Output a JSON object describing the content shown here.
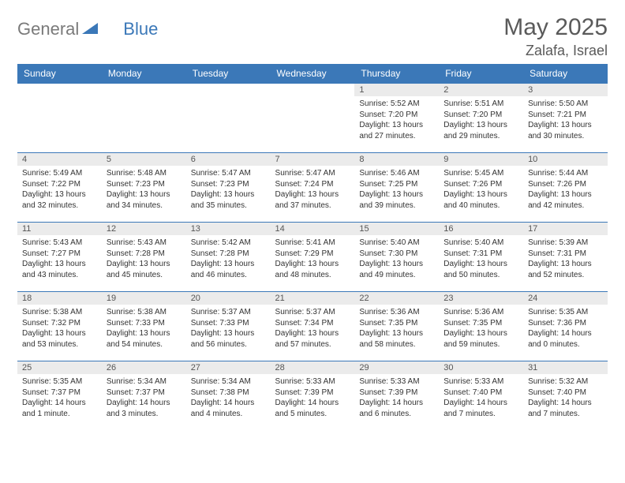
{
  "brand": {
    "text1": "General",
    "text2": "Blue"
  },
  "title": "May 2025",
  "location": "Zalafa, Israel",
  "colors": {
    "header_bg": "#3b78b8",
    "header_text": "#ffffff",
    "daynum_bg": "#ebebeb",
    "row_border": "#3b78b8",
    "page_bg": "#ffffff",
    "body_text": "#333333",
    "muted_text": "#5a5a5a"
  },
  "weekdays": [
    "Sunday",
    "Monday",
    "Tuesday",
    "Wednesday",
    "Thursday",
    "Friday",
    "Saturday"
  ],
  "weeks": [
    [
      {
        "n": "",
        "lines": []
      },
      {
        "n": "",
        "lines": []
      },
      {
        "n": "",
        "lines": []
      },
      {
        "n": "",
        "lines": []
      },
      {
        "n": "1",
        "lines": [
          "Sunrise: 5:52 AM",
          "Sunset: 7:20 PM",
          "Daylight: 13 hours and 27 minutes."
        ]
      },
      {
        "n": "2",
        "lines": [
          "Sunrise: 5:51 AM",
          "Sunset: 7:20 PM",
          "Daylight: 13 hours and 29 minutes."
        ]
      },
      {
        "n": "3",
        "lines": [
          "Sunrise: 5:50 AM",
          "Sunset: 7:21 PM",
          "Daylight: 13 hours and 30 minutes."
        ]
      }
    ],
    [
      {
        "n": "4",
        "lines": [
          "Sunrise: 5:49 AM",
          "Sunset: 7:22 PM",
          "Daylight: 13 hours and 32 minutes."
        ]
      },
      {
        "n": "5",
        "lines": [
          "Sunrise: 5:48 AM",
          "Sunset: 7:23 PM",
          "Daylight: 13 hours and 34 minutes."
        ]
      },
      {
        "n": "6",
        "lines": [
          "Sunrise: 5:47 AM",
          "Sunset: 7:23 PM",
          "Daylight: 13 hours and 35 minutes."
        ]
      },
      {
        "n": "7",
        "lines": [
          "Sunrise: 5:47 AM",
          "Sunset: 7:24 PM",
          "Daylight: 13 hours and 37 minutes."
        ]
      },
      {
        "n": "8",
        "lines": [
          "Sunrise: 5:46 AM",
          "Sunset: 7:25 PM",
          "Daylight: 13 hours and 39 minutes."
        ]
      },
      {
        "n": "9",
        "lines": [
          "Sunrise: 5:45 AM",
          "Sunset: 7:26 PM",
          "Daylight: 13 hours and 40 minutes."
        ]
      },
      {
        "n": "10",
        "lines": [
          "Sunrise: 5:44 AM",
          "Sunset: 7:26 PM",
          "Daylight: 13 hours and 42 minutes."
        ]
      }
    ],
    [
      {
        "n": "11",
        "lines": [
          "Sunrise: 5:43 AM",
          "Sunset: 7:27 PM",
          "Daylight: 13 hours and 43 minutes."
        ]
      },
      {
        "n": "12",
        "lines": [
          "Sunrise: 5:43 AM",
          "Sunset: 7:28 PM",
          "Daylight: 13 hours and 45 minutes."
        ]
      },
      {
        "n": "13",
        "lines": [
          "Sunrise: 5:42 AM",
          "Sunset: 7:28 PM",
          "Daylight: 13 hours and 46 minutes."
        ]
      },
      {
        "n": "14",
        "lines": [
          "Sunrise: 5:41 AM",
          "Sunset: 7:29 PM",
          "Daylight: 13 hours and 48 minutes."
        ]
      },
      {
        "n": "15",
        "lines": [
          "Sunrise: 5:40 AM",
          "Sunset: 7:30 PM",
          "Daylight: 13 hours and 49 minutes."
        ]
      },
      {
        "n": "16",
        "lines": [
          "Sunrise: 5:40 AM",
          "Sunset: 7:31 PM",
          "Daylight: 13 hours and 50 minutes."
        ]
      },
      {
        "n": "17",
        "lines": [
          "Sunrise: 5:39 AM",
          "Sunset: 7:31 PM",
          "Daylight: 13 hours and 52 minutes."
        ]
      }
    ],
    [
      {
        "n": "18",
        "lines": [
          "Sunrise: 5:38 AM",
          "Sunset: 7:32 PM",
          "Daylight: 13 hours and 53 minutes."
        ]
      },
      {
        "n": "19",
        "lines": [
          "Sunrise: 5:38 AM",
          "Sunset: 7:33 PM",
          "Daylight: 13 hours and 54 minutes."
        ]
      },
      {
        "n": "20",
        "lines": [
          "Sunrise: 5:37 AM",
          "Sunset: 7:33 PM",
          "Daylight: 13 hours and 56 minutes."
        ]
      },
      {
        "n": "21",
        "lines": [
          "Sunrise: 5:37 AM",
          "Sunset: 7:34 PM",
          "Daylight: 13 hours and 57 minutes."
        ]
      },
      {
        "n": "22",
        "lines": [
          "Sunrise: 5:36 AM",
          "Sunset: 7:35 PM",
          "Daylight: 13 hours and 58 minutes."
        ]
      },
      {
        "n": "23",
        "lines": [
          "Sunrise: 5:36 AM",
          "Sunset: 7:35 PM",
          "Daylight: 13 hours and 59 minutes."
        ]
      },
      {
        "n": "24",
        "lines": [
          "Sunrise: 5:35 AM",
          "Sunset: 7:36 PM",
          "Daylight: 14 hours and 0 minutes."
        ]
      }
    ],
    [
      {
        "n": "25",
        "lines": [
          "Sunrise: 5:35 AM",
          "Sunset: 7:37 PM",
          "Daylight: 14 hours and 1 minute."
        ]
      },
      {
        "n": "26",
        "lines": [
          "Sunrise: 5:34 AM",
          "Sunset: 7:37 PM",
          "Daylight: 14 hours and 3 minutes."
        ]
      },
      {
        "n": "27",
        "lines": [
          "Sunrise: 5:34 AM",
          "Sunset: 7:38 PM",
          "Daylight: 14 hours and 4 minutes."
        ]
      },
      {
        "n": "28",
        "lines": [
          "Sunrise: 5:33 AM",
          "Sunset: 7:39 PM",
          "Daylight: 14 hours and 5 minutes."
        ]
      },
      {
        "n": "29",
        "lines": [
          "Sunrise: 5:33 AM",
          "Sunset: 7:39 PM",
          "Daylight: 14 hours and 6 minutes."
        ]
      },
      {
        "n": "30",
        "lines": [
          "Sunrise: 5:33 AM",
          "Sunset: 7:40 PM",
          "Daylight: 14 hours and 7 minutes."
        ]
      },
      {
        "n": "31",
        "lines": [
          "Sunrise: 5:32 AM",
          "Sunset: 7:40 PM",
          "Daylight: 14 hours and 7 minutes."
        ]
      }
    ]
  ]
}
